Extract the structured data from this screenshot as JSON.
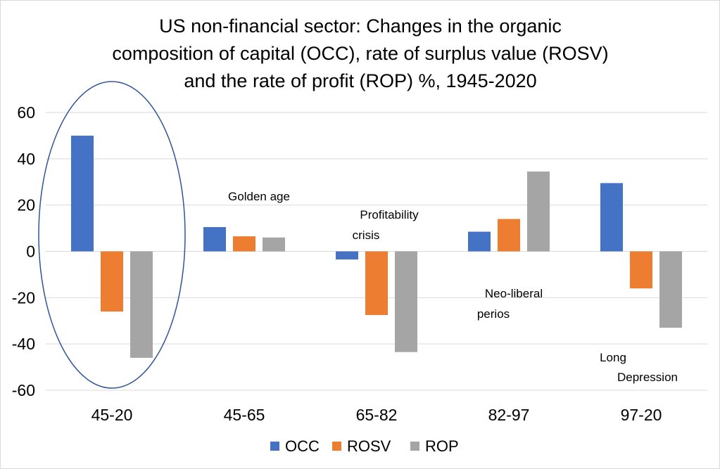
{
  "chart_data": {
    "type": "bar",
    "title_lines": [
      "US non-financial sector: Changes in the organic",
      "composition of capital (OCC), rate of surplus value (ROSV)",
      "and the rate of profit (ROP) %, 1945-2020"
    ],
    "categories": [
      "45-20",
      "45-65",
      "65-82",
      "82-97",
      "97-20"
    ],
    "series": [
      {
        "name": "OCC",
        "color": "#4472c4",
        "values": [
          50,
          10.5,
          -3.5,
          8.5,
          29.5
        ]
      },
      {
        "name": "ROSV",
        "color": "#ed7d31",
        "values": [
          -26,
          6.5,
          -27.5,
          14,
          -16
        ]
      },
      {
        "name": "ROP",
        "color": "#a5a5a5",
        "values": [
          -46,
          6,
          -43.5,
          34.5,
          -33
        ]
      }
    ],
    "ylim": [
      -60,
      60
    ],
    "yticks": [
      60,
      40,
      20,
      0,
      -20,
      -40,
      -60
    ],
    "grid": true,
    "legend_position": "bottom",
    "annotations": [
      {
        "lines": [
          "Golden age"
        ],
        "category": "45-65"
      },
      {
        "lines": [
          "Profitability",
          "crisis"
        ],
        "category": "65-82"
      },
      {
        "lines": [
          "Neo-liberal",
          "perios"
        ],
        "category": "82-97"
      },
      {
        "lines": [
          "Long",
          "Depression"
        ],
        "category": "97-20"
      }
    ],
    "highlight": {
      "shape": "ellipse",
      "category": "45-20",
      "color": "#2f5597"
    }
  }
}
